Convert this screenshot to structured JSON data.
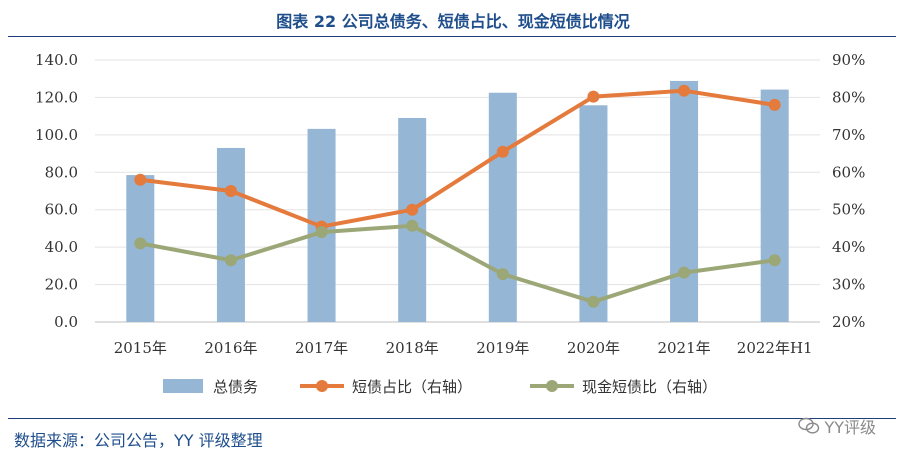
{
  "header": {
    "title": "图表 22 公司总债务、短债占比、现金短债比情况"
  },
  "footer": {
    "source": "数据来源：公司公告，YY 评级整理",
    "watermark": "YY评级"
  },
  "colors": {
    "bar": "#95b6d5",
    "short_debt_line": "#e47a3c",
    "cash_ratio_line": "#9ca777",
    "title": "#1f4e8c"
  },
  "chart_data": {
    "type": "bar",
    "categories": [
      "2015年",
      "2016年",
      "2017年",
      "2018年",
      "2019年",
      "2020年",
      "2021年",
      "2022年H1"
    ],
    "series": [
      {
        "name": "总债务",
        "type": "bar",
        "axis": "left",
        "values": [
          78.5,
          93.0,
          103.2,
          109.0,
          122.5,
          115.8,
          128.8,
          124.2
        ]
      },
      {
        "name": "短债占比（右轴）",
        "type": "line",
        "axis": "right",
        "values": [
          58.0,
          55.0,
          45.5,
          50.0,
          65.5,
          80.2,
          81.8,
          78.0
        ]
      },
      {
        "name": "现金短债比（右轴）",
        "type": "line",
        "axis": "right",
        "values": [
          41.0,
          36.5,
          44.0,
          45.7,
          32.8,
          25.4,
          33.2,
          36.5
        ]
      }
    ],
    "left_axis": {
      "ylim": [
        0,
        140
      ],
      "ticks": [
        "0.0",
        "20.0",
        "40.0",
        "60.0",
        "80.0",
        "100.0",
        "120.0",
        "140.0"
      ]
    },
    "right_axis": {
      "ylim": [
        20,
        90
      ],
      "ticks": [
        "20%",
        "30%",
        "40%",
        "50%",
        "60%",
        "70%",
        "80%",
        "90%"
      ]
    },
    "grid": true,
    "legend_position": "bottom"
  }
}
